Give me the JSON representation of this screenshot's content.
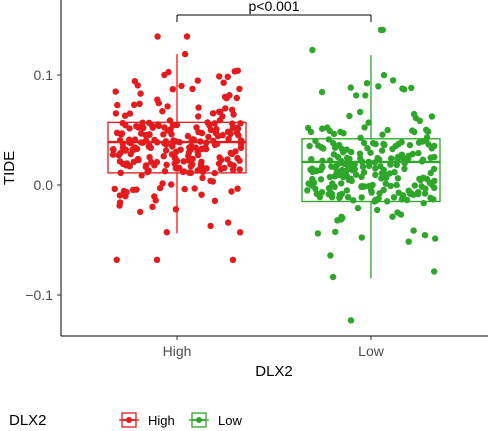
{
  "chart_data": {
    "type": "boxplot",
    "xlabel": "DLX2",
    "ylabel": "TIDE",
    "ylim": [
      -0.135,
      0.165
    ],
    "yticks": [
      -0.1,
      0.0,
      0.1
    ],
    "ytick_labels": [
      "−0.1",
      "0.0",
      "0.1"
    ],
    "categories": [
      "High",
      "Low"
    ],
    "colors": {
      "High": "#E41A1C",
      "Low": "#2EA62A"
    },
    "annotation": "p<0.001",
    "series": [
      {
        "name": "High",
        "q1": 0.011,
        "median": 0.039,
        "q3": 0.057,
        "whisker_low": -0.044,
        "whisker_high": 0.119,
        "min": -0.068,
        "max": 0.135,
        "n": 255
      },
      {
        "name": "Low",
        "q1": -0.015,
        "median": 0.021,
        "q3": 0.042,
        "whisker_low": -0.085,
        "whisker_high": 0.118,
        "min": -0.123,
        "max": 0.141,
        "n": 255
      }
    ],
    "legend": {
      "title": "DLX2",
      "position": "bottom-left",
      "items": [
        "High",
        "Low"
      ]
    },
    "grid": false
  }
}
